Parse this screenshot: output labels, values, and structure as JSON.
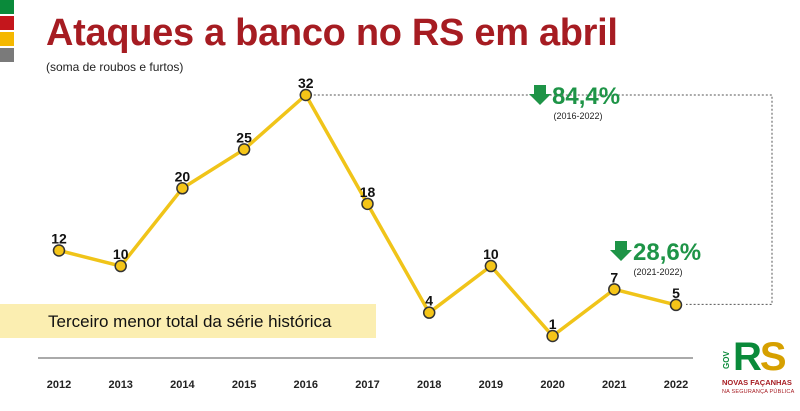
{
  "header": {
    "title": "Ataques a banco no RS em abril",
    "subtitle": "(soma de roubos e furtos)"
  },
  "flag_colors": [
    "#0a8a3a",
    "#c4161c",
    "#f5b800",
    "#7a7a7a"
  ],
  "colors": {
    "title": "#a61c22",
    "line": "#f0c419",
    "marker_fill": "#f5c518",
    "marker_stroke": "#333333",
    "decrease_green": "#1e9447",
    "note_bg": "#fbeeb1"
  },
  "chart_data": {
    "type": "line",
    "categories": [
      "2012",
      "2013",
      "2014",
      "2015",
      "2016",
      "2017",
      "2018",
      "2019",
      "2020",
      "2021",
      "2022"
    ],
    "values": [
      12,
      10,
      20,
      25,
      32,
      18,
      4,
      10,
      1,
      7,
      5
    ],
    "data_labels": [
      "12",
      "10",
      "20",
      "25",
      "32",
      "18",
      "4",
      "10",
      "1",
      "7",
      "5"
    ],
    "ylim": [
      0,
      33
    ],
    "grid": false,
    "legend": "none",
    "annotations": [
      {
        "icon": "arrow-down-icon",
        "value": "84,4%",
        "period": "(2016-2022)",
        "from": "2016",
        "to": "2022"
      },
      {
        "icon": "arrow-down-icon",
        "value": "28,6%",
        "period": "(2021-2022)",
        "from": "2021",
        "to": "2022"
      }
    ]
  },
  "note": {
    "text": "Terceiro menor total da série histórica"
  },
  "logo": {
    "gov": "GOV",
    "r": "R",
    "s": "S",
    "line1": "NOVAS FAÇANHAS",
    "line2": "NA SEGURANÇA PÚBLICA"
  }
}
